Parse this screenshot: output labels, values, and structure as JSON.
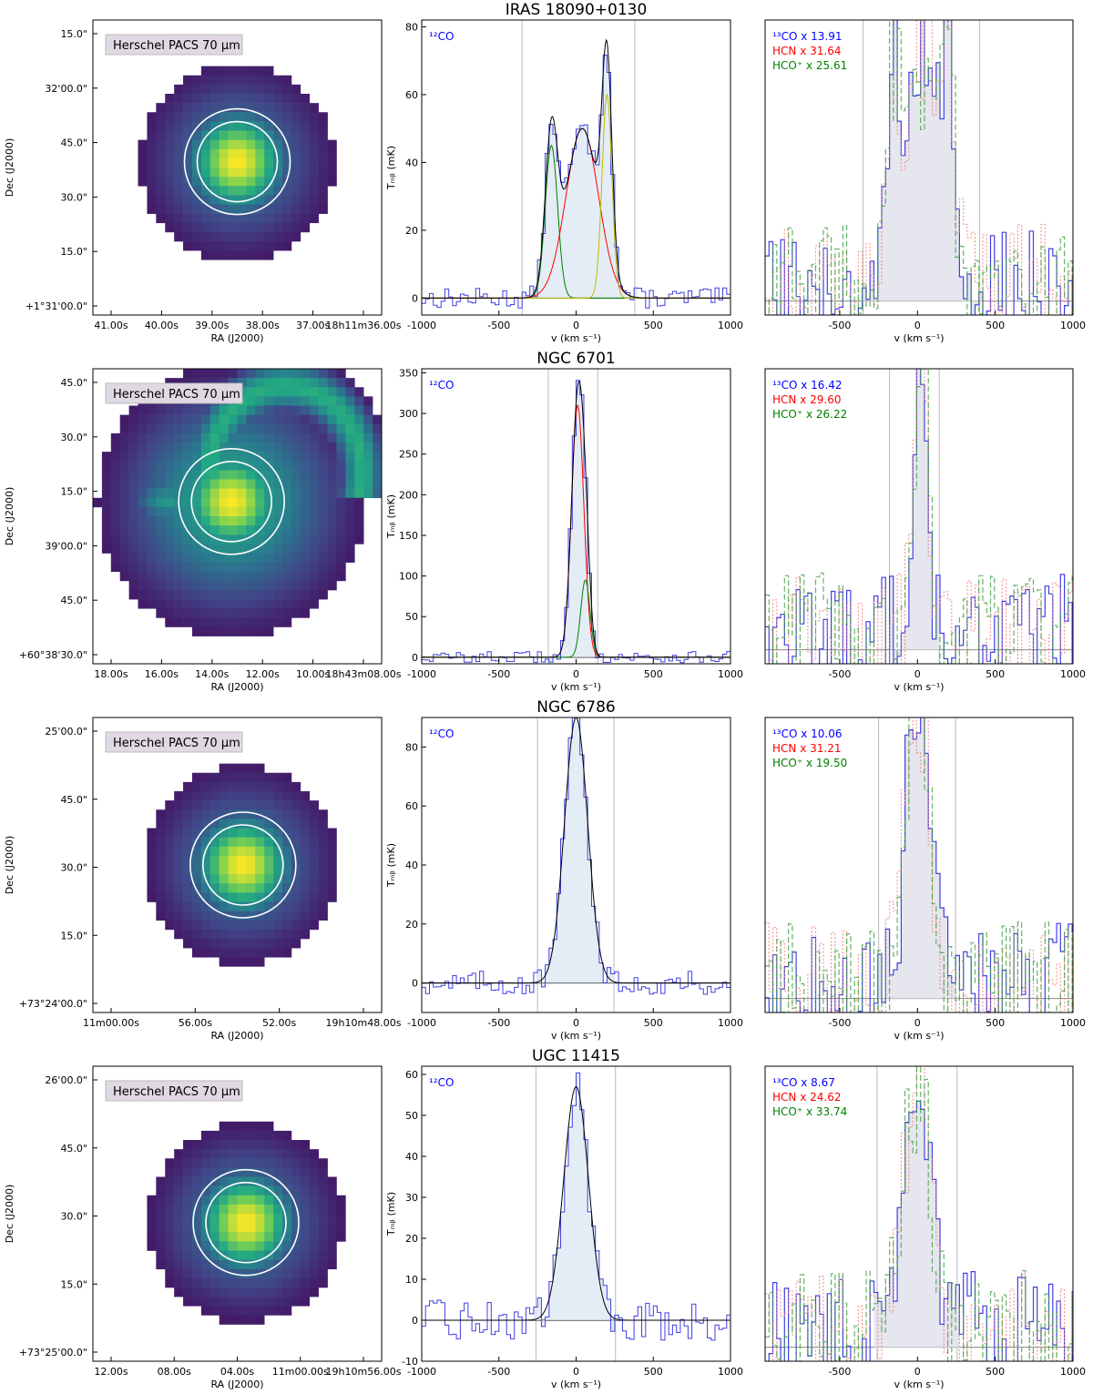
{
  "figure": {
    "image_panel_label": "Herschel PACS 70 μm",
    "ra_axis_label": "RA (J2000)",
    "dec_axis_label": "Dec (J2000)",
    "v_axis_label": "v (km s⁻¹)",
    "tmb_axis_label": "Tₘᵦ (mK)",
    "co12_label": "¹²CO"
  },
  "chart_data": [
    {
      "type": "line",
      "title": "IRAS 18090+0130",
      "image": {
        "dec_ticks": [
          "15.0\"",
          "32'00.0\"",
          "45.0\"",
          "30.0\"",
          "15.0\"",
          "+1°31'00.0\""
        ],
        "ra_ticks": [
          "41.00s",
          "40.00s",
          "39.00s",
          "38.00s",
          "37.00s",
          "18h11m36.00s"
        ],
        "source_center": [
          0.5,
          0.48
        ],
        "source": "compact"
      },
      "co12": {
        "xlim": [
          -1000,
          1000
        ],
        "ylim": [
          -5,
          82
        ],
        "x_ticks": [
          -1000,
          -500,
          0,
          500,
          1000
        ],
        "y_ticks": [
          0,
          20,
          40,
          60,
          80
        ],
        "window": [
          -350,
          380
        ],
        "components": [
          {
            "color": "#008000",
            "amp": 45,
            "center": -160,
            "sigma": 40
          },
          {
            "color": "#ff0000",
            "amp": 50,
            "center": 40,
            "sigma": 105
          },
          {
            "color": "#bbbb00",
            "amp": 60,
            "center": 200,
            "sigma": 32
          }
        ],
        "noise": 3
      },
      "dense": {
        "xlim": [
          -980,
          1000
        ],
        "x_ticks": [
          -500,
          0,
          500,
          1000
        ],
        "window": [
          -350,
          400
        ],
        "legend": [
          {
            "label": "¹³CO x 13.91",
            "color": "#0000ff"
          },
          {
            "label": "HCN  x 31.64",
            "color": "#ff0000"
          },
          {
            "label": "HCO⁺  x 25.61",
            "color": "#008000"
          }
        ]
      }
    },
    {
      "type": "line",
      "title": "NGC 6701",
      "image": {
        "dec_ticks": [
          "45.0\"",
          "30.0\"",
          "15.0\"",
          "39'00.0\"",
          "45.0\"",
          "+60°38'30.0\""
        ],
        "ra_ticks": [
          "18.00s",
          "16.00s",
          "14.00s",
          "12.00s",
          "10.00s",
          "18h43m08.00s"
        ],
        "source_center": [
          0.48,
          0.45
        ],
        "source": "spiral"
      },
      "co12": {
        "xlim": [
          -1000,
          1000
        ],
        "ylim": [
          -8,
          355
        ],
        "x_ticks": [
          -1000,
          -500,
          0,
          500,
          1000
        ],
        "y_ticks": [
          0,
          50,
          100,
          150,
          200,
          250,
          300,
          350
        ],
        "window": [
          -180,
          140
        ],
        "components": [
          {
            "color": "#ff0000",
            "amp": 310,
            "center": 10,
            "sigma": 40
          },
          {
            "color": "#008000",
            "amp": 95,
            "center": 60,
            "sigma": 30
          }
        ],
        "noise": 7
      },
      "dense": {
        "xlim": [
          -980,
          1000
        ],
        "x_ticks": [
          -500,
          0,
          500,
          1000
        ],
        "window": [
          -180,
          140
        ],
        "legend": [
          {
            "label": "¹³CO x 16.42",
            "color": "#0000ff"
          },
          {
            "label": "HCN  x 29.60",
            "color": "#ff0000"
          },
          {
            "label": "HCO⁺  x 26.22",
            "color": "#008000"
          }
        ]
      }
    },
    {
      "type": "line",
      "title": "NGC 6786",
      "image": {
        "dec_ticks": [
          "25'00.0\"",
          "45.0\"",
          "30.0\"",
          "15.0\"",
          "+73°24'00.0\""
        ],
        "ra_ticks": [
          "11m00.00s",
          "56.00s",
          "52.00s",
          "19h10m48.00s"
        ],
        "source_center": [
          0.52,
          0.5
        ],
        "source": "compact"
      },
      "co12": {
        "xlim": [
          -1000,
          1000
        ],
        "ylim": [
          -10,
          90
        ],
        "x_ticks": [
          -1000,
          -500,
          0,
          500,
          1000
        ],
        "y_ticks": [
          0,
          20,
          40,
          60,
          80
        ],
        "window": [
          -250,
          245
        ],
        "components": [
          {
            "color": "#000000",
            "amp": 90,
            "center": 0,
            "sigma": 75
          }
        ],
        "noise": 4
      },
      "dense": {
        "xlim": [
          -980,
          1000
        ],
        "x_ticks": [
          -500,
          0,
          500,
          1000
        ],
        "window": [
          -250,
          245
        ],
        "legend": [
          {
            "label": "¹³CO x 10.06",
            "color": "#0000ff"
          },
          {
            "label": "HCN  x 31.21",
            "color": "#ff0000"
          },
          {
            "label": "HCO⁺  x 19.50",
            "color": "#008000"
          }
        ]
      }
    },
    {
      "type": "line",
      "title": "UGC 11415",
      "image": {
        "dec_ticks": [
          "26'00.0\"",
          "45.0\"",
          "30.0\"",
          "15.0\"",
          "+73°25'00.0\""
        ],
        "ra_ticks": [
          "12.00s",
          "08.00s",
          "04.00s",
          "11m00.00s",
          "19h10m56.00s"
        ],
        "source_center": [
          0.53,
          0.53
        ],
        "source": "compact"
      },
      "co12": {
        "xlim": [
          -1000,
          1000
        ],
        "ylim": [
          -10,
          62
        ],
        "x_ticks": [
          -1000,
          -500,
          0,
          500,
          1000
        ],
        "y_ticks": [
          -10,
          0,
          10,
          20,
          30,
          40,
          50,
          60
        ],
        "window": [
          -260,
          255
        ],
        "components": [
          {
            "color": "#000000",
            "amp": 57,
            "center": 0,
            "sigma": 80
          }
        ],
        "noise": 5
      },
      "dense": {
        "xlim": [
          -980,
          1000
        ],
        "x_ticks": [
          -500,
          0,
          500,
          1000
        ],
        "window": [
          -260,
          255
        ],
        "legend": [
          {
            "label": "¹³CO x 8.67",
            "color": "#0000ff"
          },
          {
            "label": "HCN  x 24.62",
            "color": "#ff0000"
          },
          {
            "label": "HCO⁺  x 33.74",
            "color": "#008000"
          }
        ]
      }
    }
  ]
}
